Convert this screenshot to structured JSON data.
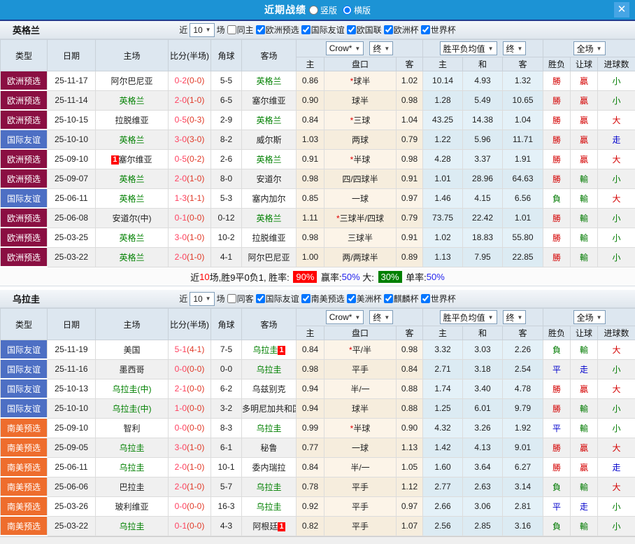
{
  "titlebar": {
    "title": "近期战绩",
    "radio_vertical_label": "竖版",
    "radio_horizontal_label": "横版",
    "radio_selected": "横版",
    "close_label": "✕"
  },
  "filter_common": {
    "near_label": "近",
    "count_value": "10",
    "matches_label": "场"
  },
  "table_header": {
    "type": "类型",
    "date": "日期",
    "home": "主场",
    "score": "比分(半场)",
    "corner": "角球",
    "away": "客场",
    "odds_source_select": "Crow*",
    "final_select": "终",
    "avg_select": "胜平负均值",
    "final_select2": "终",
    "scope_select": "全场",
    "sub_home": "主",
    "sub_handicap": "盘口",
    "sub_away": "客",
    "sub_avg_home": "主",
    "sub_avg_draw": "和",
    "sub_avg_away": "客",
    "sub_result": "胜负",
    "sub_handicap_result": "让球",
    "sub_goals": "进球数"
  },
  "colors": {
    "title_accent": "#1c93d5",
    "team_highlight": "#008000",
    "type_badge": {
      "欧洲预选": "#8a0f42",
      "国际友谊": "#4d6fc4",
      "南美预选": "#ee6d2d"
    },
    "result": {
      "勝": "#d40000",
      "負": "#007a00",
      "平": "#0000cc",
      "贏": "#d40000",
      "輸": "#007a00",
      "走": "#0000cc",
      "大": "#d40000",
      "小": "#007a00"
    }
  },
  "sections": [
    {
      "team": "英格兰",
      "same_filter": {
        "label": "同主",
        "checked": false
      },
      "filters": [
        {
          "label": "欧洲预选",
          "checked": true
        },
        {
          "label": "国际友谊",
          "checked": true
        },
        {
          "label": "欧国联",
          "checked": true
        },
        {
          "label": "欧洲杯",
          "checked": true
        },
        {
          "label": "世界杯",
          "checked": true
        }
      ],
      "rows": [
        {
          "type": "欧洲预选",
          "date": "25-11-17",
          "home": "阿尔巴尼亚",
          "home_hl": false,
          "home_badge": "",
          "home_badge_pos": "",
          "score_ft": "0-2",
          "score_ht": "(0-0)",
          "corner": "5-5",
          "away": "英格兰",
          "away_hl": true,
          "away_badge": "",
          "away_badge_pos": "",
          "odds_home": "0.86",
          "handicap": "球半",
          "handicap_star": true,
          "odds_away": "1.02",
          "avg_home": "10.14",
          "avg_draw": "4.93",
          "avg_away": "1.32",
          "r_win": "勝",
          "r_handicap": "贏",
          "r_goals": "小"
        },
        {
          "type": "欧洲预选",
          "date": "25-11-14",
          "home": "英格兰",
          "home_hl": true,
          "home_badge": "",
          "home_badge_pos": "",
          "score_ft": "2-0",
          "score_ht": "(1-0)",
          "corner": "6-5",
          "away": "塞尔维亚",
          "away_hl": false,
          "away_badge": "",
          "away_badge_pos": "",
          "odds_home": "0.90",
          "handicap": "球半",
          "handicap_star": false,
          "odds_away": "0.98",
          "avg_home": "1.28",
          "avg_draw": "5.49",
          "avg_away": "10.65",
          "r_win": "勝",
          "r_handicap": "贏",
          "r_goals": "小"
        },
        {
          "type": "欧洲预选",
          "date": "25-10-15",
          "home": "拉脱维亚",
          "home_hl": false,
          "home_badge": "",
          "home_badge_pos": "",
          "score_ft": "0-5",
          "score_ht": "(0-3)",
          "corner": "2-9",
          "away": "英格兰",
          "away_hl": true,
          "away_badge": "",
          "away_badge_pos": "",
          "odds_home": "0.84",
          "handicap": "三球",
          "handicap_star": true,
          "odds_away": "1.04",
          "avg_home": "43.25",
          "avg_draw": "14.38",
          "avg_away": "1.04",
          "r_win": "勝",
          "r_handicap": "贏",
          "r_goals": "大"
        },
        {
          "type": "国际友谊",
          "date": "25-10-10",
          "home": "英格兰",
          "home_hl": true,
          "home_badge": "",
          "home_badge_pos": "",
          "score_ft": "3-0",
          "score_ht": "(3-0)",
          "corner": "8-2",
          "away": "威尔斯",
          "away_hl": false,
          "away_badge": "",
          "away_badge_pos": "",
          "odds_home": "1.03",
          "handicap": "两球",
          "handicap_star": false,
          "odds_away": "0.79",
          "avg_home": "1.22",
          "avg_draw": "5.96",
          "avg_away": "11.71",
          "r_win": "勝",
          "r_handicap": "贏",
          "r_goals": "走"
        },
        {
          "type": "欧洲预选",
          "date": "25-09-10",
          "home": "塞尔维亚",
          "home_hl": false,
          "home_badge": "1",
          "home_badge_pos": "pre",
          "score_ft": "0-5",
          "score_ht": "(0-2)",
          "corner": "2-6",
          "away": "英格兰",
          "away_hl": true,
          "away_badge": "",
          "away_badge_pos": "",
          "odds_home": "0.91",
          "handicap": "半球",
          "handicap_star": true,
          "odds_away": "0.98",
          "avg_home": "4.28",
          "avg_draw": "3.37",
          "avg_away": "1.91",
          "r_win": "勝",
          "r_handicap": "贏",
          "r_goals": "大"
        },
        {
          "type": "欧洲预选",
          "date": "25-09-07",
          "home": "英格兰",
          "home_hl": true,
          "home_badge": "",
          "home_badge_pos": "",
          "score_ft": "2-0",
          "score_ht": "(1-0)",
          "corner": "8-0",
          "away": "安道尔",
          "away_hl": false,
          "away_badge": "",
          "away_badge_pos": "",
          "odds_home": "0.98",
          "handicap": "四/四球半",
          "handicap_star": false,
          "odds_away": "0.91",
          "avg_home": "1.01",
          "avg_draw": "28.96",
          "avg_away": "64.63",
          "r_win": "勝",
          "r_handicap": "輸",
          "r_goals": "小"
        },
        {
          "type": "国际友谊",
          "date": "25-06-11",
          "home": "英格兰",
          "home_hl": true,
          "home_badge": "",
          "home_badge_pos": "",
          "score_ft": "1-3",
          "score_ht": "(1-1)",
          "corner": "5-3",
          "away": "塞内加尔",
          "away_hl": false,
          "away_badge": "",
          "away_badge_pos": "",
          "odds_home": "0.85",
          "handicap": "一球",
          "handicap_star": false,
          "odds_away": "0.97",
          "avg_home": "1.46",
          "avg_draw": "4.15",
          "avg_away": "6.56",
          "r_win": "負",
          "r_handicap": "輸",
          "r_goals": "大"
        },
        {
          "type": "欧洲预选",
          "date": "25-06-08",
          "home": "安道尔(中)",
          "home_hl": false,
          "home_badge": "",
          "home_badge_pos": "",
          "score_ft": "0-1",
          "score_ht": "(0-0)",
          "corner": "0-12",
          "away": "英格兰",
          "away_hl": true,
          "away_badge": "",
          "away_badge_pos": "",
          "odds_home": "1.11",
          "handicap": "三球半/四球",
          "handicap_star": true,
          "odds_away": "0.79",
          "avg_home": "73.75",
          "avg_draw": "22.42",
          "avg_away": "1.01",
          "r_win": "勝",
          "r_handicap": "輸",
          "r_goals": "小"
        },
        {
          "type": "欧洲预选",
          "date": "25-03-25",
          "home": "英格兰",
          "home_hl": true,
          "home_badge": "",
          "home_badge_pos": "",
          "score_ft": "3-0",
          "score_ht": "(1-0)",
          "corner": "10-2",
          "away": "拉脱维亚",
          "away_hl": false,
          "away_badge": "",
          "away_badge_pos": "",
          "odds_home": "0.98",
          "handicap": "三球半",
          "handicap_star": false,
          "odds_away": "0.91",
          "avg_home": "1.02",
          "avg_draw": "18.83",
          "avg_away": "55.80",
          "r_win": "勝",
          "r_handicap": "輸",
          "r_goals": "小"
        },
        {
          "type": "欧洲预选",
          "date": "25-03-22",
          "home": "英格兰",
          "home_hl": true,
          "home_badge": "",
          "home_badge_pos": "",
          "score_ft": "2-0",
          "score_ht": "(1-0)",
          "corner": "4-1",
          "away": "阿尔巴尼亚",
          "away_hl": false,
          "away_badge": "",
          "away_badge_pos": "",
          "odds_home": "1.00",
          "handicap": "两/两球半",
          "handicap_star": false,
          "odds_away": "0.89",
          "avg_home": "1.13",
          "avg_draw": "7.95",
          "avg_away": "22.85",
          "r_win": "勝",
          "r_handicap": "輸",
          "r_goals": "小"
        }
      ],
      "summary": [
        {
          "text": "近",
          "style": "plain"
        },
        {
          "text": "10",
          "style": "red"
        },
        {
          "text": "场,胜9平0负1, 胜率: ",
          "style": "plain"
        },
        {
          "text": "90%",
          "style": "badge-red"
        },
        {
          "text": " 赢率:",
          "style": "plain"
        },
        {
          "text": "50%",
          "style": "blue"
        },
        {
          "text": " 大: ",
          "style": "plain"
        },
        {
          "text": "30%",
          "style": "badge-green"
        },
        {
          "text": " 单率:",
          "style": "plain"
        },
        {
          "text": "50%",
          "style": "blue"
        }
      ]
    },
    {
      "team": "乌拉圭",
      "same_filter": {
        "label": "同客",
        "checked": false
      },
      "filters": [
        {
          "label": "国际友谊",
          "checked": true
        },
        {
          "label": "南美预选",
          "checked": true
        },
        {
          "label": "美洲杯",
          "checked": true
        },
        {
          "label": "麒麟杯",
          "checked": true
        },
        {
          "label": "世界杯",
          "checked": true
        }
      ],
      "rows": [
        {
          "type": "国际友谊",
          "date": "25-11-19",
          "home": "美国",
          "home_hl": false,
          "home_badge": "",
          "home_badge_pos": "",
          "score_ft": "5-1",
          "score_ht": "(4-1)",
          "corner": "7-5",
          "away": "乌拉圭",
          "away_hl": true,
          "away_badge": "1",
          "away_badge_pos": "post",
          "odds_home": "0.84",
          "handicap": "平/半",
          "handicap_star": true,
          "odds_away": "0.98",
          "avg_home": "3.32",
          "avg_draw": "3.03",
          "avg_away": "2.26",
          "r_win": "負",
          "r_handicap": "輸",
          "r_goals": "大"
        },
        {
          "type": "国际友谊",
          "date": "25-11-16",
          "home": "墨西哥",
          "home_hl": false,
          "home_badge": "",
          "home_badge_pos": "",
          "score_ft": "0-0",
          "score_ht": "(0-0)",
          "corner": "0-0",
          "away": "乌拉圭",
          "away_hl": true,
          "away_badge": "",
          "away_badge_pos": "",
          "odds_home": "0.98",
          "handicap": "平手",
          "handicap_star": false,
          "odds_away": "0.84",
          "avg_home": "2.71",
          "avg_draw": "3.18",
          "avg_away": "2.54",
          "r_win": "平",
          "r_handicap": "走",
          "r_goals": "小"
        },
        {
          "type": "国际友谊",
          "date": "25-10-13",
          "home": "乌拉圭(中)",
          "home_hl": true,
          "home_badge": "",
          "home_badge_pos": "",
          "score_ft": "2-1",
          "score_ht": "(0-0)",
          "corner": "6-2",
          "away": "乌兹别克",
          "away_hl": false,
          "away_badge": "",
          "away_badge_pos": "",
          "odds_home": "0.94",
          "handicap": "半/一",
          "handicap_star": false,
          "odds_away": "0.88",
          "avg_home": "1.74",
          "avg_draw": "3.40",
          "avg_away": "4.78",
          "r_win": "勝",
          "r_handicap": "贏",
          "r_goals": "大"
        },
        {
          "type": "国际友谊",
          "date": "25-10-10",
          "home": "乌拉圭(中)",
          "home_hl": true,
          "home_badge": "",
          "home_badge_pos": "",
          "score_ft": "1-0",
          "score_ht": "(0-0)",
          "corner": "3-2",
          "away": "多明尼加共和国",
          "away_hl": false,
          "away_badge": "",
          "away_badge_pos": "",
          "odds_home": "0.94",
          "handicap": "球半",
          "handicap_star": false,
          "odds_away": "0.88",
          "avg_home": "1.25",
          "avg_draw": "6.01",
          "avg_away": "9.79",
          "r_win": "勝",
          "r_handicap": "輸",
          "r_goals": "小"
        },
        {
          "type": "南美预选",
          "date": "25-09-10",
          "home": "智利",
          "home_hl": false,
          "home_badge": "",
          "home_badge_pos": "",
          "score_ft": "0-0",
          "score_ht": "(0-0)",
          "corner": "8-3",
          "away": "乌拉圭",
          "away_hl": true,
          "away_badge": "",
          "away_badge_pos": "",
          "odds_home": "0.99",
          "handicap": "半球",
          "handicap_star": true,
          "odds_away": "0.90",
          "avg_home": "4.32",
          "avg_draw": "3.26",
          "avg_away": "1.92",
          "r_win": "平",
          "r_handicap": "輸",
          "r_goals": "小"
        },
        {
          "type": "南美预选",
          "date": "25-09-05",
          "home": "乌拉圭",
          "home_hl": true,
          "home_badge": "",
          "home_badge_pos": "",
          "score_ft": "3-0",
          "score_ht": "(1-0)",
          "corner": "6-1",
          "away": "秘鲁",
          "away_hl": false,
          "away_badge": "",
          "away_badge_pos": "",
          "odds_home": "0.77",
          "handicap": "一球",
          "handicap_star": false,
          "odds_away": "1.13",
          "avg_home": "1.42",
          "avg_draw": "4.13",
          "avg_away": "9.01",
          "r_win": "勝",
          "r_handicap": "贏",
          "r_goals": "大"
        },
        {
          "type": "南美预选",
          "date": "25-06-11",
          "home": "乌拉圭",
          "home_hl": true,
          "home_badge": "",
          "home_badge_pos": "",
          "score_ft": "2-0",
          "score_ht": "(1-0)",
          "corner": "10-1",
          "away": "委内瑞拉",
          "away_hl": false,
          "away_badge": "",
          "away_badge_pos": "",
          "odds_home": "0.84",
          "handicap": "半/一",
          "handicap_star": false,
          "odds_away": "1.05",
          "avg_home": "1.60",
          "avg_draw": "3.64",
          "avg_away": "6.27",
          "r_win": "勝",
          "r_handicap": "贏",
          "r_goals": "走"
        },
        {
          "type": "南美预选",
          "date": "25-06-06",
          "home": "巴拉圭",
          "home_hl": false,
          "home_badge": "",
          "home_badge_pos": "",
          "score_ft": "2-0",
          "score_ht": "(1-0)",
          "corner": "5-7",
          "away": "乌拉圭",
          "away_hl": true,
          "away_badge": "",
          "away_badge_pos": "",
          "odds_home": "0.78",
          "handicap": "平手",
          "handicap_star": false,
          "odds_away": "1.12",
          "avg_home": "2.77",
          "avg_draw": "2.63",
          "avg_away": "3.14",
          "r_win": "負",
          "r_handicap": "輸",
          "r_goals": "大"
        },
        {
          "type": "南美预选",
          "date": "25-03-26",
          "home": "玻利维亚",
          "home_hl": false,
          "home_badge": "",
          "home_badge_pos": "",
          "score_ft": "0-0",
          "score_ht": "(0-0)",
          "corner": "16-3",
          "away": "乌拉圭",
          "away_hl": true,
          "away_badge": "",
          "away_badge_pos": "",
          "odds_home": "0.92",
          "handicap": "平手",
          "handicap_star": false,
          "odds_away": "0.97",
          "avg_home": "2.66",
          "avg_draw": "3.06",
          "avg_away": "2.81",
          "r_win": "平",
          "r_handicap": "走",
          "r_goals": "小"
        },
        {
          "type": "南美预选",
          "date": "25-03-22",
          "home": "乌拉圭",
          "home_hl": true,
          "home_badge": "",
          "home_badge_pos": "",
          "score_ft": "0-1",
          "score_ht": "(0-0)",
          "corner": "4-3",
          "away": "阿根廷",
          "away_hl": false,
          "away_badge": "1",
          "away_badge_pos": "post",
          "odds_home": "0.82",
          "handicap": "平手",
          "handicap_star": false,
          "odds_away": "1.07",
          "avg_home": "2.56",
          "avg_draw": "2.85",
          "avg_away": "3.16",
          "r_win": "負",
          "r_handicap": "輸",
          "r_goals": "小"
        }
      ],
      "summary": null
    }
  ]
}
